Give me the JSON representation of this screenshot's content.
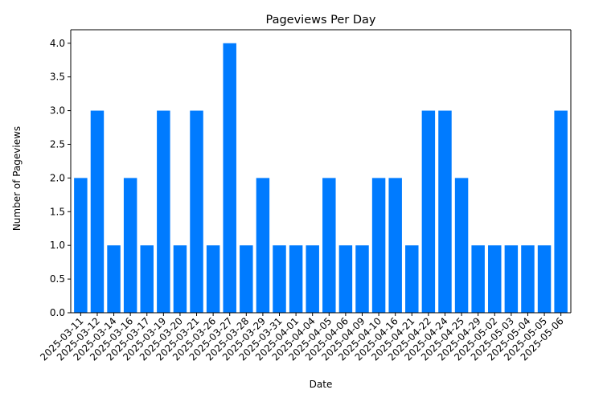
{
  "chart_data": {
    "type": "bar",
    "title": "Pageviews Per Day",
    "xlabel": "Date",
    "ylabel": "Number of Pageviews",
    "ylim": [
      0,
      4.2
    ],
    "yticks": [
      "0.0",
      "0.5",
      "1.0",
      "1.5",
      "2.0",
      "2.5",
      "3.0",
      "3.5",
      "4.0"
    ],
    "bar_color": "#007bff",
    "grid": false,
    "categories": [
      "2025-03-11",
      "2025-03-12",
      "2025-03-14",
      "2025-03-16",
      "2025-03-17",
      "2025-03-19",
      "2025-03-20",
      "2025-03-21",
      "2025-03-26",
      "2025-03-27",
      "2025-03-28",
      "2025-03-29",
      "2025-03-31",
      "2025-04-01",
      "2025-04-04",
      "2025-04-05",
      "2025-04-06",
      "2025-04-09",
      "2025-04-10",
      "2025-04-16",
      "2025-04-21",
      "2025-04-22",
      "2025-04-24",
      "2025-04-25",
      "2025-04-29",
      "2025-05-02",
      "2025-05-03",
      "2025-05-04",
      "2025-05-05",
      "2025-05-06"
    ],
    "values": [
      2,
      3,
      1,
      2,
      1,
      3,
      1,
      3,
      1,
      4,
      1,
      2,
      1,
      1,
      1,
      2,
      1,
      1,
      2,
      2,
      1,
      3,
      3,
      2,
      1,
      1,
      1,
      1,
      1,
      3
    ]
  }
}
